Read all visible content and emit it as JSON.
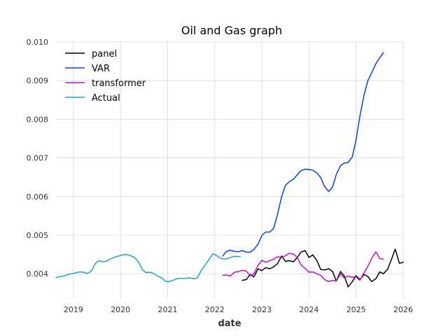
{
  "chart_data": {
    "type": "line",
    "title": "Oil and Gas graph",
    "xlabel": "date",
    "ylabel": "",
    "xlim": [
      2018.63,
      2026.0
    ],
    "ylim": [
      0.00335,
      0.01
    ],
    "grid": true,
    "legend_position": "top-left",
    "x_ticks": [
      2019,
      2020,
      2021,
      2022,
      2023,
      2024,
      2025,
      2026
    ],
    "x_tick_labels": [
      "2019",
      "2020",
      "2021",
      "2022",
      "2023",
      "2024",
      "2025",
      "2026"
    ],
    "y_ticks": [
      0.004,
      0.005,
      0.006,
      0.007,
      0.008,
      0.009,
      0.01
    ],
    "y_tick_labels": [
      "0.004",
      "0.005",
      "0.006",
      "0.007",
      "0.008",
      "0.009",
      "0.010"
    ],
    "series": [
      {
        "name": "panel",
        "color": "#000000",
        "x": [
          2022.58,
          2022.67,
          2022.75,
          2022.83,
          2022.92,
          2023.0,
          2023.08,
          2023.17,
          2023.25,
          2023.33,
          2023.42,
          2023.5,
          2023.58,
          2023.67,
          2023.75,
          2023.83,
          2023.92,
          2024.0,
          2024.08,
          2024.17,
          2024.25,
          2024.33,
          2024.42,
          2024.5,
          2024.58,
          2024.67,
          2024.75,
          2024.83,
          2024.92,
          2025.0,
          2025.08,
          2025.17,
          2025.25,
          2025.33,
          2025.42,
          2025.5,
          2025.58,
          2025.67,
          2025.75,
          2025.83,
          2025.92,
          2026.0
        ],
        "y": [
          0.00383,
          0.00385,
          0.00398,
          0.00392,
          0.00413,
          0.00408,
          0.00416,
          0.00413,
          0.00418,
          0.00426,
          0.00446,
          0.00432,
          0.00434,
          0.00431,
          0.00442,
          0.00456,
          0.0046,
          0.00442,
          0.00449,
          0.00434,
          0.00411,
          0.0041,
          0.00413,
          0.00406,
          0.00381,
          0.00406,
          0.00394,
          0.00366,
          0.0038,
          0.00395,
          0.00385,
          0.00398,
          0.00393,
          0.0038,
          0.00387,
          0.00405,
          0.004,
          0.00412,
          0.00437,
          0.00464,
          0.00427,
          0.0043
        ]
      },
      {
        "name": "VAR",
        "color": "#0a3fe8",
        "x": [
          2022.17,
          2022.25,
          2022.33,
          2022.42,
          2022.5,
          2022.58,
          2022.67,
          2022.75,
          2022.83,
          2022.92,
          2023.0,
          2023.08,
          2023.17,
          2023.25,
          2023.33,
          2023.42,
          2023.5,
          2023.58,
          2023.67,
          2023.75,
          2023.83,
          2023.92,
          2024.0,
          2024.08,
          2024.17,
          2024.25,
          2024.33,
          2024.42,
          2024.5,
          2024.58,
          2024.67,
          2024.75,
          2024.83,
          2024.92,
          2025.0,
          2025.08,
          2025.17,
          2025.25,
          2025.33,
          2025.42,
          2025.5,
          2025.58
        ],
        "y": [
          0.00446,
          0.00458,
          0.00461,
          0.00458,
          0.00457,
          0.0046,
          0.00456,
          0.00456,
          0.00463,
          0.00477,
          0.00499,
          0.00508,
          0.00508,
          0.00517,
          0.00553,
          0.006,
          0.00629,
          0.00638,
          0.00645,
          0.00656,
          0.00667,
          0.00671,
          0.0067,
          0.00668,
          0.00661,
          0.00649,
          0.00626,
          0.00613,
          0.00625,
          0.00657,
          0.0068,
          0.00687,
          0.00688,
          0.00703,
          0.00747,
          0.00808,
          0.00863,
          0.009,
          0.0092,
          0.00944,
          0.00959,
          0.00973
        ]
      },
      {
        "name": "transformer",
        "color": "#bf0fc8",
        "x": [
          2022.17,
          2022.25,
          2022.33,
          2022.42,
          2022.5,
          2022.58,
          2022.67,
          2022.75,
          2022.83,
          2022.92,
          2023.0,
          2023.08,
          2023.17,
          2023.25,
          2023.33,
          2023.42,
          2023.5,
          2023.58,
          2023.67,
          2023.75,
          2023.83,
          2023.92,
          2024.0,
          2024.08,
          2024.17,
          2024.25,
          2024.33,
          2024.42,
          2024.5,
          2024.58,
          2024.67,
          2024.75,
          2024.83,
          2024.92,
          2025.0,
          2025.08,
          2025.17,
          2025.25,
          2025.33,
          2025.42,
          2025.5,
          2025.58
        ],
        "y": [
          0.00396,
          0.00397,
          0.00394,
          0.00404,
          0.00406,
          0.00409,
          0.00407,
          0.00395,
          0.004,
          0.00422,
          0.00435,
          0.0043,
          0.00434,
          0.00438,
          0.00444,
          0.00442,
          0.00447,
          0.00453,
          0.00451,
          0.00443,
          0.00423,
          0.00414,
          0.00404,
          0.00405,
          0.004,
          0.00396,
          0.00385,
          0.0038,
          0.00383,
          0.00381,
          0.004,
          0.00389,
          0.00394,
          0.00391,
          0.00392,
          0.00383,
          0.00403,
          0.00419,
          0.0044,
          0.00457,
          0.0044,
          0.00438
        ]
      },
      {
        "name": "Actual",
        "color": "#17a8b8",
        "x": [
          2018.63,
          2018.71,
          2018.79,
          2018.88,
          2018.96,
          2019.04,
          2019.13,
          2019.21,
          2019.29,
          2019.38,
          2019.46,
          2019.54,
          2019.63,
          2019.71,
          2019.79,
          2019.88,
          2019.96,
          2020.04,
          2020.13,
          2020.21,
          2020.29,
          2020.38,
          2020.46,
          2020.54,
          2020.63,
          2020.71,
          2020.79,
          2020.88,
          2020.96,
          2021.04,
          2021.13,
          2021.21,
          2021.29,
          2021.38,
          2021.46,
          2021.54,
          2021.63,
          2021.71,
          2021.79,
          2021.88,
          2021.96,
          2022.04,
          2022.13,
          2022.21,
          2022.29,
          2022.38,
          2022.46,
          2022.54
        ],
        "y": [
          0.0039,
          0.00393,
          0.00394,
          0.00398,
          0.004,
          0.00402,
          0.00405,
          0.00404,
          0.00401,
          0.00407,
          0.00426,
          0.00434,
          0.00431,
          0.00433,
          0.00439,
          0.00443,
          0.00446,
          0.00449,
          0.0045,
          0.00447,
          0.00443,
          0.00431,
          0.00411,
          0.00403,
          0.00404,
          0.004,
          0.00394,
          0.00389,
          0.0038,
          0.0038,
          0.00384,
          0.00388,
          0.00388,
          0.00388,
          0.0039,
          0.00387,
          0.00389,
          0.00408,
          0.00422,
          0.00437,
          0.00452,
          0.00447,
          0.0044,
          0.00438,
          0.0044,
          0.00444,
          0.00445,
          0.00444
        ]
      }
    ]
  }
}
